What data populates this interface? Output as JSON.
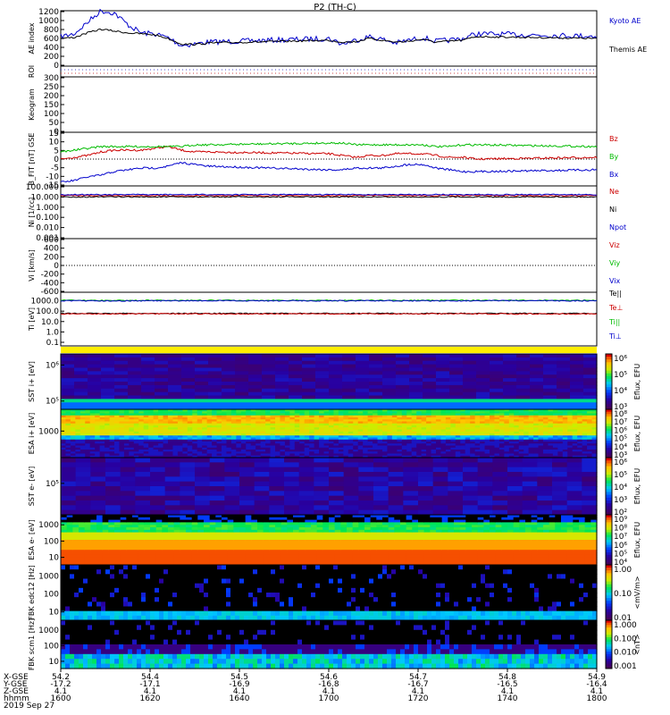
{
  "chart_data": {
    "type": "line",
    "title": "P2 (TH-C)",
    "date_label": "2019 Sep 27",
    "panels": [
      {
        "key": "ae",
        "type": "line",
        "ylabel": "AE index",
        "ylim": [
          0,
          1200
        ],
        "yticks": [
          "0",
          "200",
          "400",
          "600",
          "800",
          "1000",
          "1200"
        ],
        "x": [
          1600,
          1605,
          1610,
          1615,
          1620,
          1625,
          1630,
          1635,
          1640,
          1645,
          1650,
          1655,
          1700,
          1705,
          1710,
          1715,
          1720,
          1725,
          1730,
          1735,
          1740,
          1745,
          1750,
          1755,
          1800
        ],
        "series": [
          {
            "name": "Kyoto AE",
            "color": "#0000cc",
            "values": [
              640,
              700,
              950,
              1200,
              1150,
              900,
              720,
              700,
              620,
              450,
              480,
              520,
              600,
              480,
              560,
              640,
              580,
              500,
              560,
              620,
              540,
              560,
              600,
              700,
              650
            ]
          },
          {
            "name": "Themis AE",
            "color": "#000000",
            "values": [
              600,
              620,
              720,
              800,
              760,
              720,
              700,
              680,
              600,
              480,
              470,
              500,
              560,
              520,
              530,
              600,
              560,
              520,
              540,
              580,
              520,
              540,
              560,
              640,
              600
            ]
          }
        ]
      },
      {
        "key": "roi",
        "type": "line",
        "ylabel": "ROI",
        "series": []
      },
      {
        "key": "keo",
        "type": "heatmap",
        "ylabel": "Keogram",
        "yticks": [
          "0",
          "50",
          "100",
          "150",
          "200",
          "250",
          "300"
        ],
        "ylim": [
          0,
          300
        ],
        "values": []
      },
      {
        "key": "bfit",
        "type": "line",
        "ylabel": "B_FIT [nT] GSE",
        "ylim": [
          -15,
          15
        ],
        "yticks": [
          "-15",
          "-10",
          "-5",
          "0",
          "5",
          "10",
          "15"
        ],
        "x": [
          1600,
          1605,
          1610,
          1615,
          1620,
          1625,
          1630,
          1635,
          1640,
          1645,
          1650,
          1655,
          1700,
          1705,
          1710,
          1715,
          1720,
          1725,
          1730,
          1735,
          1740,
          1745,
          1750,
          1755,
          1800
        ],
        "series": [
          {
            "name": "Bz",
            "color": "#cc0000",
            "values": [
              0,
              1,
              2,
              4,
              5,
              5,
              5,
              6,
              7,
              5,
              4,
              4,
              3,
              2,
              1,
              2,
              2,
              3,
              3,
              3,
              2,
              1,
              1,
              0,
              1
            ]
          },
          {
            "name": "By",
            "color": "#00bb00",
            "values": [
              4,
              5,
              6,
              7,
              7,
              7,
              7,
              7,
              7,
              7,
              8,
              8,
              9,
              9,
              8,
              8,
              8,
              8,
              8,
              8,
              7,
              7,
              8,
              8,
              7
            ]
          },
          {
            "name": "Bx",
            "color": "#0000cc",
            "values": [
              -13,
              -12,
              -10,
              -9,
              -7,
              -6,
              -5,
              -5,
              -4,
              -2,
              -3,
              -4,
              -6,
              -6,
              -5,
              -5,
              -5,
              -4,
              -3,
              -3,
              -5,
              -6,
              -7,
              -7,
              -6
            ]
          }
        ]
      },
      {
        "key": "ni",
        "type": "line",
        "ylabel": "Ni [1/cc]",
        "yticks": [
          "0.001",
          "0.010",
          "0.100",
          "1.000",
          "10.000",
          "100.000"
        ],
        "ylim": [
          0.001,
          100
        ],
        "scale": "log",
        "x": [
          1600,
          1800
        ],
        "series": [
          {
            "name": "Ne",
            "color": "#cc0000",
            "values": [
              12,
              12
            ]
          },
          {
            "name": "Ni",
            "color": "#000000",
            "values": [
              9,
              9
            ]
          },
          {
            "name": "Npot",
            "color": "#0000cc",
            "values": [
              15,
              15
            ]
          }
        ]
      },
      {
        "key": "vi",
        "type": "line",
        "ylabel": "Vi [km/s]",
        "yticks": [
          "-600",
          "-400",
          "-200",
          "0",
          "200",
          "400",
          "600"
        ],
        "ylim": [
          -600,
          600
        ],
        "series": [
          {
            "name": "Viz",
            "color": "#cc0000",
            "values": []
          },
          {
            "name": "Viy",
            "color": "#00bb00",
            "values": []
          },
          {
            "name": "Vix",
            "color": "#0000cc",
            "values": []
          }
        ]
      },
      {
        "key": "ti",
        "type": "line",
        "ylabel": "Ti [eV]",
        "yticks": [
          "0.1",
          "1.0",
          "10.0",
          "100.0",
          "1000.0"
        ],
        "ylim": [
          0.1,
          3000
        ],
        "scale": "log",
        "x": [
          1600,
          1800
        ],
        "series": [
          {
            "name": "Te||",
            "color": "#000000",
            "values": [
              60,
              60
            ]
          },
          {
            "name": "Te⊥",
            "color": "#cc0000",
            "values": [
              55,
              55
            ]
          },
          {
            "name": "Ti||",
            "color": "#00bb00",
            "values": [
              1100,
              1100
            ]
          },
          {
            "name": "Ti⊥",
            "color": "#0000cc",
            "values": [
              1000,
              1000
            ]
          }
        ]
      },
      {
        "key": "sst_i",
        "type": "heatmap",
        "ylabel": "SST i+ [eV]",
        "yticks": [
          "10⁶",
          "10⁵"
        ],
        "colorbar": [
          "10⁶",
          "10⁵",
          "10⁴",
          "10³"
        ],
        "cbar_label": "Eflux, EFU"
      },
      {
        "key": "esa_i",
        "type": "heatmap",
        "ylabel": "ESA i+ [eV]",
        "yticks": [
          "1000"
        ],
        "colorbar": [
          "10⁸",
          "10⁷",
          "10⁶",
          "10⁵",
          "10⁴",
          "10³"
        ],
        "cbar_label": "Eflux, EFU"
      },
      {
        "key": "sst_e",
        "type": "heatmap",
        "ylabel": "SST e- [eV]",
        "yticks": [
          "10⁵"
        ],
        "colorbar": [
          "10⁶",
          "10⁵",
          "10⁴",
          "10³",
          "10²"
        ],
        "cbar_label": "Eflux, EFU"
      },
      {
        "key": "esa_e",
        "type": "heatmap",
        "ylabel": "ESA e- [eV]",
        "yticks": [
          "1000",
          "100",
          "10"
        ],
        "colorbar": [
          "10⁹",
          "10⁸",
          "10⁷",
          "10⁶",
          "10⁵",
          "10⁴"
        ],
        "cbar_label": "Eflux, EFU"
      },
      {
        "key": "fbk_e",
        "type": "heatmap",
        "ylabel": "FBK edc12 [Hz]",
        "yticks": [
          "1000",
          "100",
          "10"
        ],
        "colorbar": [
          "1.00",
          "0.10",
          "0.01"
        ],
        "cbar_label": "<mV/m>"
      },
      {
        "key": "fbk_b",
        "type": "heatmap",
        "ylabel": "FBK scm1 [Hz]",
        "yticks": [
          "1000",
          "100",
          "10"
        ],
        "colorbar": [
          "1.000",
          "0.100",
          "0.010",
          "0.001"
        ],
        "cbar_label": "<nT>"
      }
    ],
    "x_axis": {
      "row_labels": [
        "X-GSE",
        "Y-GSE",
        "Z-GSE",
        "hhmm",
        "2019 Sep 27"
      ],
      "ticks": [
        [
          "54.2",
          "-17.2",
          "4.1",
          "1600"
        ],
        [
          "54.4",
          "-17.1",
          "4.1",
          "1620"
        ],
        [
          "54.5",
          "-16.9",
          "4.1",
          "1640"
        ],
        [
          "54.6",
          "-16.8",
          "4.1",
          "1700"
        ],
        [
          "54.7",
          "-16.7",
          "4.1",
          "1720"
        ],
        [
          "54.8",
          "-16.5",
          "4.1",
          "1740"
        ],
        [
          "54.9",
          "-16.4",
          "4.1",
          "1800"
        ]
      ]
    }
  }
}
